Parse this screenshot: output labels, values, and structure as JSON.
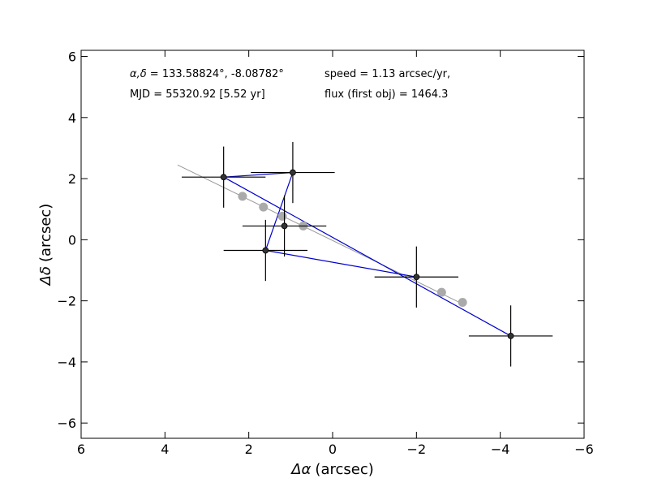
{
  "chart_data": {
    "type": "scatter",
    "xlabel_symbol": "Δα",
    "xlabel_unit": "(arcsec)",
    "ylabel_symbol": "Δδ",
    "ylabel_unit": "(arcsec)",
    "xlim": [
      6,
      -6
    ],
    "ylim": [
      -6.5,
      6.2
    ],
    "x_inverted": true,
    "xticks": [
      6,
      4,
      2,
      0,
      -2,
      -4,
      -6
    ],
    "xtick_labels": [
      "6",
      "4",
      "2",
      "0",
      "−2",
      "−4",
      "−6"
    ],
    "yticks": [
      6,
      4,
      2,
      0,
      -2,
      -4,
      -6
    ],
    "ytick_labels": [
      "6",
      "4",
      "2",
      "0",
      "−2",
      "−4",
      "−6"
    ],
    "grid": false,
    "annotations": {
      "coords_symbol": "α,δ",
      "coords_value": " = 133.58824°, -8.08782°",
      "speed": "speed = 1.13 arcsec/yr,",
      "mjd": "MJD = 55320.92 [5.52 yr]",
      "flux": "flux (first obj) = 1464.3"
    },
    "colors": {
      "observed": "#333333",
      "error_bars": "#000000",
      "path": "#0000cc",
      "fit_line": "#999999",
      "model": "#aaaaaa"
    },
    "fit_line": {
      "x": [
        3.7,
        -3.1
      ],
      "y": [
        2.45,
        -2.1
      ]
    },
    "observed_points": [
      {
        "x": 2.6,
        "y": 2.05,
        "xerr": 1.0,
        "yerr": 1.0
      },
      {
        "x": 0.95,
        "y": 2.2,
        "xerr": 1.0,
        "yerr": 1.0
      },
      {
        "x": 1.15,
        "y": 0.45,
        "xerr": 1.0,
        "yerr": 1.0
      },
      {
        "x": 1.6,
        "y": -0.35,
        "xerr": 1.0,
        "yerr": 1.0
      },
      {
        "x": -2.0,
        "y": -1.22,
        "xerr": 1.0,
        "yerr": 1.0
      },
      {
        "x": -4.25,
        "y": -3.15,
        "xerr": 1.0,
        "yerr": 1.0
      }
    ],
    "path_order": [
      4,
      3,
      1,
      0,
      5
    ],
    "model_points": [
      {
        "x": 2.15,
        "y": 1.42
      },
      {
        "x": 1.65,
        "y": 1.07
      },
      {
        "x": 1.2,
        "y": 0.77
      },
      {
        "x": 0.7,
        "y": 0.45
      },
      {
        "x": -2.6,
        "y": -1.72
      },
      {
        "x": -3.1,
        "y": -2.05
      }
    ]
  }
}
